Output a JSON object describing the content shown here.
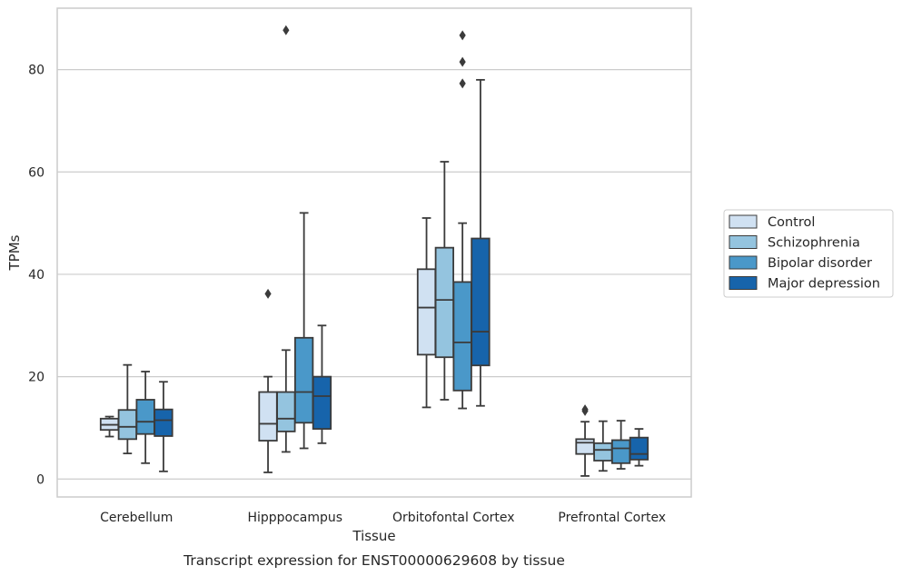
{
  "chart_data": {
    "type": "box",
    "title": "",
    "caption": "Transcript expression for ENST00000629608 by tissue",
    "xlabel": "Tissue",
    "ylabel": "TPMs",
    "ylim": [
      -3.5,
      92
    ],
    "yticks": [
      0,
      20,
      40,
      60,
      80
    ],
    "grid": "horizontal",
    "legend_position": "right",
    "categories": [
      "Cerebellum",
      "Hipppocampus",
      "Orbitofontal Cortex",
      "Prefrontal Cortex"
    ],
    "series": [
      {
        "name": "Control",
        "color": "#d0e1f2",
        "boxes": [
          {
            "whislo": 8.3,
            "q1": 9.6,
            "med": 10.6,
            "q3": 11.8,
            "whishi": 12.2,
            "fliers": []
          },
          {
            "whislo": 1.3,
            "q1": 7.5,
            "med": 10.8,
            "q3": 17.0,
            "whishi": 20.0,
            "fliers": [
              36.2
            ]
          },
          {
            "whislo": 14.0,
            "q1": 24.3,
            "med": 33.5,
            "q3": 41.0,
            "whishi": 51.0,
            "fliers": []
          },
          {
            "whislo": 0.6,
            "q1": 4.9,
            "med": 7.1,
            "q3": 7.8,
            "whishi": 11.2,
            "fliers": [
              13.3,
              13.6
            ]
          }
        ]
      },
      {
        "name": "Schizophrenia",
        "color": "#94c4df",
        "boxes": [
          {
            "whislo": 5.0,
            "q1": 7.8,
            "med": 10.2,
            "q3": 13.5,
            "whishi": 22.3,
            "fliers": []
          },
          {
            "whislo": 5.3,
            "q1": 9.3,
            "med": 11.8,
            "q3": 17.0,
            "whishi": 25.2,
            "fliers": [
              87.7
            ]
          },
          {
            "whislo": 15.5,
            "q1": 23.8,
            "med": 35.0,
            "q3": 45.2,
            "whishi": 62.0,
            "fliers": []
          },
          {
            "whislo": 1.6,
            "q1": 3.6,
            "med": 5.7,
            "q3": 7.0,
            "whishi": 11.3,
            "fliers": []
          }
        ]
      },
      {
        "name": "Bipolar disorder",
        "color": "#4a98c9",
        "boxes": [
          {
            "whislo": 3.1,
            "q1": 8.8,
            "med": 11.2,
            "q3": 15.5,
            "whishi": 21.0,
            "fliers": []
          },
          {
            "whislo": 6.0,
            "q1": 11.0,
            "med": 17.0,
            "q3": 27.6,
            "whishi": 52.0,
            "fliers": []
          },
          {
            "whislo": 13.8,
            "q1": 17.3,
            "med": 26.7,
            "q3": 38.5,
            "whishi": 50.0,
            "fliers": [
              77.3,
              81.5,
              86.7
            ]
          },
          {
            "whislo": 2.0,
            "q1": 3.1,
            "med": 6.0,
            "q3": 7.6,
            "whishi": 11.4,
            "fliers": []
          }
        ]
      },
      {
        "name": "Major depression",
        "color": "#1764ab",
        "boxes": [
          {
            "whislo": 1.5,
            "q1": 8.4,
            "med": 11.5,
            "q3": 13.6,
            "whishi": 19.0,
            "fliers": []
          },
          {
            "whislo": 7.0,
            "q1": 9.8,
            "med": 16.2,
            "q3": 20.0,
            "whishi": 30.0,
            "fliers": []
          },
          {
            "whislo": 14.3,
            "q1": 22.2,
            "med": 28.8,
            "q3": 47.0,
            "whishi": 78.0,
            "fliers": []
          },
          {
            "whislo": 2.6,
            "q1": 3.8,
            "med": 4.9,
            "q3": 8.1,
            "whishi": 9.8,
            "fliers": []
          }
        ]
      }
    ]
  }
}
